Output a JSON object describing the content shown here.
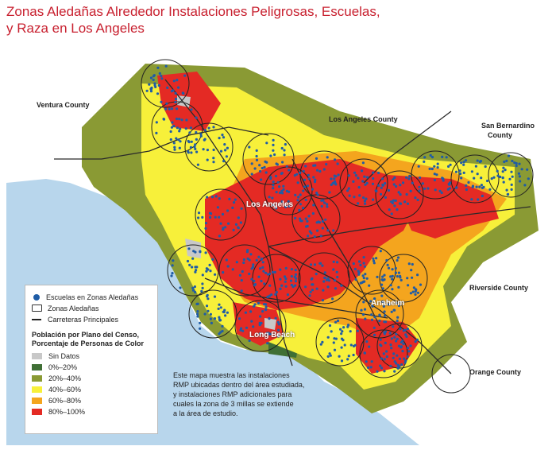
{
  "title_line1": "Zonas Aledañas Alrededor Instalaciones Peligrosas, Escuelas,",
  "title_line2": "y Raza en Los Angeles",
  "map": {
    "labels": {
      "ventura": "Ventura County",
      "la_county": "Los Angeles County",
      "sb_county_1": "San Bernardino",
      "sb_county_2": "County",
      "los_angeles": "Los Angeles",
      "riverside": "Riverside County",
      "anaheim": "Anaheim",
      "long_beach": "Long Beach",
      "orange": "Orange County"
    },
    "colors": {
      "ocean": "#b8d6ec",
      "land_other": "#ffffff",
      "no_data": "#c8c8c8",
      "p0_20": "#3f6f35",
      "p20_40": "#8a9a34",
      "p40_60": "#f7f03a",
      "p60_80": "#f4a51e",
      "p80_100": "#e42a24",
      "school": "#1f5ca6"
    }
  },
  "legend": {
    "schools": "Escuelas en Zonas Aledañas",
    "zones": "Zonas Aledañas",
    "highways": "Carreteras Principales",
    "heading_line1": "Población por Plano del Censo,",
    "heading_line2": "Porcentaje de Personas de Color",
    "items": [
      {
        "label": "Sin Datos",
        "color": "#c8c8c8"
      },
      {
        "label": "0%–20%",
        "color": "#3f6f35"
      },
      {
        "label": "20%–40%",
        "color": "#8a9a34"
      },
      {
        "label": "40%–60%",
        "color": "#f7f03a"
      },
      {
        "label": "60%–80%",
        "color": "#f4a51e"
      },
      {
        "label": "80%–100%",
        "color": "#e42a24"
      }
    ]
  },
  "note": {
    "line1": "Este mapa muestra las instalaciones",
    "line2": "RMP ubicadas dentro del área estudiada,",
    "line3": "y instalaciones RMP adicionales para",
    "line4": "cuales la zona de 3 millas se extiende",
    "line5": "a la área de estudio."
  }
}
